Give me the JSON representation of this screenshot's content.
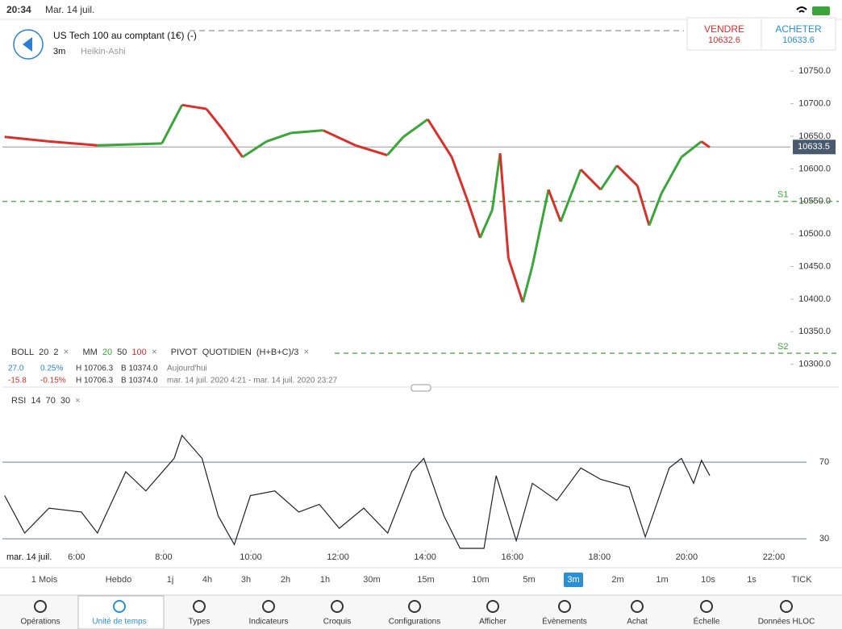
{
  "status_bar": {
    "time": "20:34",
    "date": "Mar. 14 juil."
  },
  "header": {
    "instrument": "US Tech 100 au comptant (1€) (-)",
    "interval": "3m",
    "chart_type": "Heikin-Ashi"
  },
  "quote": {
    "sell_label": "VENDRE",
    "sell_price": "10632.6",
    "buy_label": "ACHETER",
    "buy_price": "10633.6"
  },
  "price_chart": {
    "type": "line",
    "x": [
      4.35,
      5.37,
      6.48,
      7.96,
      8.42,
      8.98,
      9.35,
      9.81,
      10.36,
      10.92,
      11.66,
      12.4,
      13.13,
      13.5,
      14.06,
      14.61,
      14.98,
      15.26,
      15.54,
      15.72,
      15.91,
      16.24,
      16.46,
      16.83,
      17.11,
      17.57,
      18.03,
      18.4,
      18.87,
      19.14,
      19.42,
      19.88,
      20.34,
      20.53
    ],
    "values": [
      10649,
      10642,
      10636,
      10639,
      10698,
      10692,
      10661,
      10618,
      10642,
      10655,
      10659,
      10636,
      10621,
      10649,
      10676,
      10618,
      10550,
      10494,
      10537,
      10624,
      10463,
      10395,
      10451,
      10568,
      10519,
      10599,
      10568,
      10605,
      10574,
      10513,
      10562,
      10618,
      10642,
      10633
    ],
    "up_color": "#3aa53a",
    "down_color": "#d9302c",
    "xlim": [
      4.3,
      22.38
    ],
    "ylim": [
      10265,
      10770
    ],
    "xticks": [
      {
        "value": 6,
        "label": "6:00"
      },
      {
        "value": 8,
        "label": "8:00"
      },
      {
        "value": 10,
        "label": "10:00"
      },
      {
        "value": 12,
        "label": "12:00"
      },
      {
        "value": 14,
        "label": "14:00"
      },
      {
        "value": 16,
        "label": "16:00"
      },
      {
        "value": 18,
        "label": "18:00"
      },
      {
        "value": 20,
        "label": "20:00"
      },
      {
        "value": 22,
        "label": "22:00"
      }
    ],
    "yticks": [
      {
        "value": 10300,
        "label": "10300.0"
      },
      {
        "value": 10350,
        "label": "10350.0"
      },
      {
        "value": 10400,
        "label": "10400.0"
      },
      {
        "value": 10450,
        "label": "10450.0"
      },
      {
        "value": 10500,
        "label": "10500.0"
      },
      {
        "value": 10550,
        "label": "10550.0"
      },
      {
        "value": 10600,
        "label": "10600.0"
      },
      {
        "value": 10650,
        "label": "10650.0"
      },
      {
        "value": 10700,
        "label": "10700.0"
      },
      {
        "value": 10750,
        "label": "10750.0"
      }
    ],
    "date_label": "mar. 14 juil.",
    "last_price": 10633.5,
    "pivots": [
      {
        "name": "S1",
        "value": 10550
      },
      {
        "name": "S2",
        "value": 10317
      }
    ]
  },
  "indicators": {
    "close": "×",
    "boll": [
      "BOLL",
      "20",
      "2"
    ],
    "mm": [
      "MM",
      "20",
      "50",
      "100"
    ],
    "pivot": [
      "PIVOT",
      "QUOTIDIEN",
      "(H+B+C)/3"
    ]
  },
  "stats": [
    [
      "27.0",
      "0.25%",
      "H 10706.3",
      "B 10374.0",
      "Aujourd'hui"
    ],
    [
      "-15.8",
      "-0.15%",
      "H 10706.3",
      "B 10374.0",
      "mar. 14 juil. 2020 4:21 - mar. 14 juil. 2020 23:27"
    ]
  ],
  "rsi": {
    "type": "line",
    "label": [
      "RSI",
      "14",
      "70",
      "30"
    ],
    "color": "#222",
    "x": [
      4.35,
      4.81,
      5.37,
      6.11,
      6.48,
      7.13,
      7.59,
      8.24,
      8.42,
      8.88,
      9.25,
      9.62,
      9.99,
      10.55,
      11.1,
      11.57,
      12.03,
      12.59,
      13.14,
      13.69,
      13.97,
      14.43,
      14.8,
      15.35,
      15.63,
      16.09,
      16.46,
      17.02,
      17.57,
      18.03,
      18.68,
      19.05,
      19.6,
      19.88,
      20.16,
      20.34,
      20.53
    ],
    "values": [
      52.6,
      33,
      46,
      44,
      33,
      65,
      55,
      72,
      84,
      72,
      42,
      27,
      52.6,
      55,
      44,
      48,
      35.5,
      46,
      33,
      65,
      72,
      42,
      25,
      25,
      63,
      29,
      59,
      50,
      67,
      61,
      57,
      31,
      67,
      72,
      59,
      71,
      63
    ],
    "ylim": [
      25,
      105
    ],
    "levels": [
      70,
      30
    ],
    "level_color": "#6b7f99"
  },
  "timeframes": {
    "items": [
      "1 Mois",
      "Hebdo",
      "1j",
      "4h",
      "3h",
      "2h",
      "1h",
      "30m",
      "15m",
      "10m",
      "5m",
      "3m",
      "2m",
      "1m",
      "10s",
      "1s",
      "TICK"
    ],
    "selected": 11
  },
  "tabs": {
    "items": [
      "Opérations",
      "Unité de temps",
      "Types",
      "Indicateurs",
      "Croquis",
      "Configurations",
      "Afficher",
      "Évènements",
      "Achat",
      "Échelle",
      "Données HLOC"
    ],
    "selected": 1
  }
}
